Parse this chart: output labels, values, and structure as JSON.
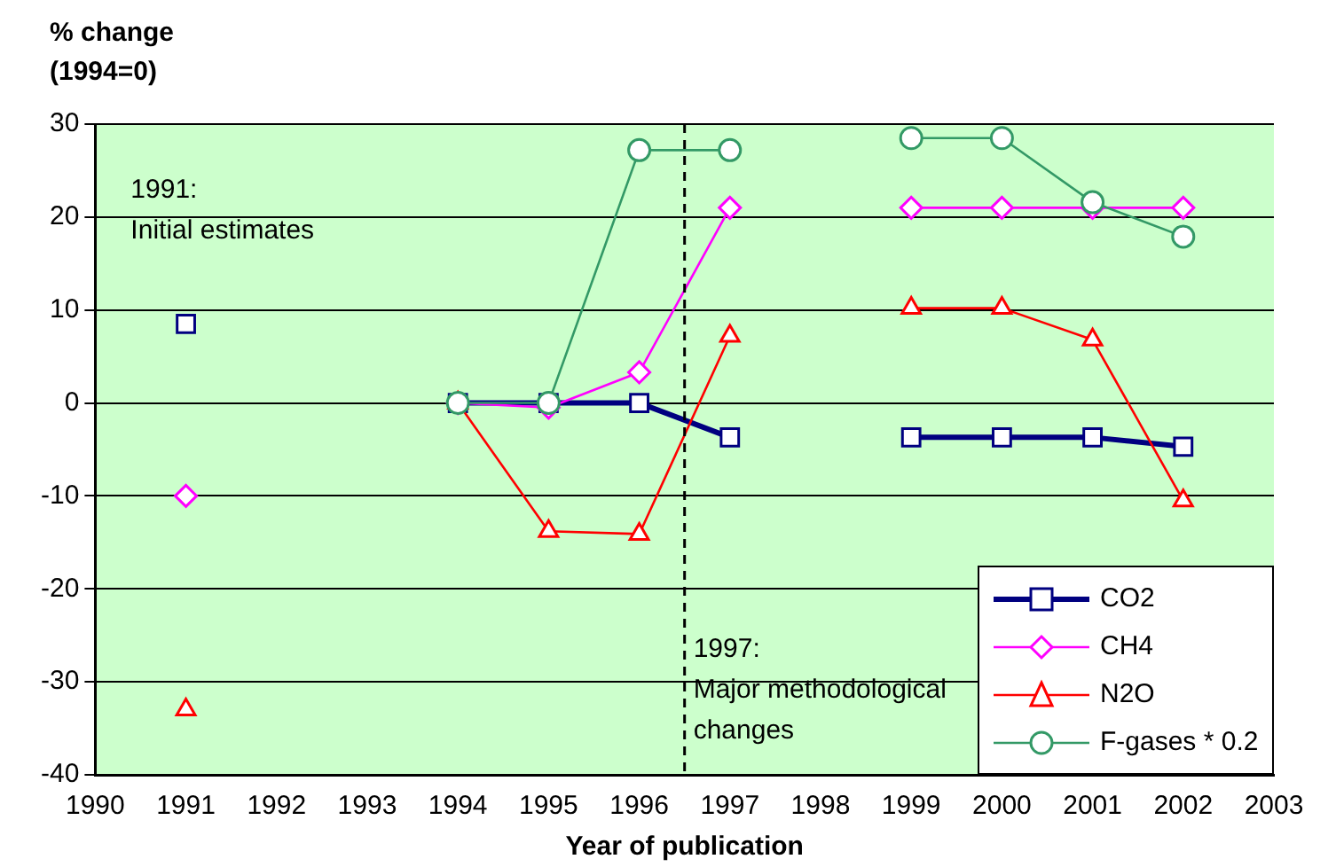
{
  "chart_data": {
    "type": "line",
    "xlabel": "Year of publication",
    "ylabel": "% change\n(1994=0)",
    "x": [
      1991,
      1992,
      1994,
      1995,
      1996,
      1997,
      1998,
      1999,
      2000,
      2001,
      2002
    ],
    "series": [
      {
        "name": "CO2",
        "color": "#000080",
        "marker": "square",
        "values": [
          8.5,
          null,
          0,
          0,
          0,
          -3.7,
          null,
          -3.7,
          -3.7,
          -3.7,
          -4.7
        ]
      },
      {
        "name": "CH4",
        "color": "#ff00ff",
        "marker": "diamond",
        "values": [
          -10,
          null,
          0,
          -0.5,
          3.3,
          21,
          null,
          21,
          21,
          21,
          21
        ]
      },
      {
        "name": "N2O",
        "color": "#ff0000",
        "marker": "triangle",
        "values": [
          -33,
          null,
          0,
          -13.8,
          -14.1,
          7.2,
          null,
          10.2,
          10.2,
          6.8,
          -10.5
        ]
      },
      {
        "name": "F-gases * 0.2",
        "color": "#339966",
        "marker": "circle",
        "values": [
          null,
          null,
          0,
          0,
          27.2,
          27.2,
          null,
          28.5,
          28.5,
          21.6,
          17.9
        ]
      }
    ],
    "xlim": [
      1990,
      2003
    ],
    "xticks": [
      1990,
      1991,
      1992,
      1993,
      1994,
      1995,
      1996,
      1997,
      1998,
      1999,
      2000,
      2001,
      2002,
      2003
    ],
    "ylim": [
      -40,
      30
    ],
    "yticks": [
      -40,
      -30,
      -20,
      -10,
      0,
      10,
      20,
      30
    ],
    "grid": "y",
    "legend": "bottom right",
    "ref_lines": [
      {
        "axis": "x",
        "value": 1996.5,
        "label": "1997:\nMajor methodological\nchanges",
        "line_style": "dashed",
        "color": "#000000"
      }
    ],
    "annotations": [
      "1991:\nInitial estimates"
    ]
  }
}
